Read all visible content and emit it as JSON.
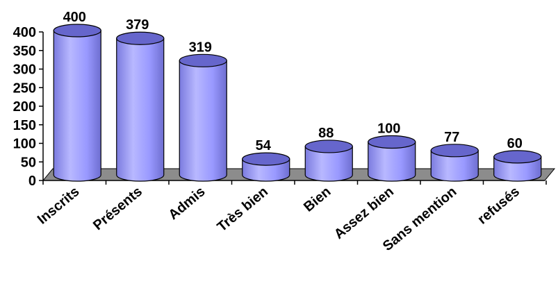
{
  "chart_data": {
    "type": "bar",
    "style": "3d-cylinder",
    "categories": [
      "Inscrits",
      "Présents",
      "Admis",
      "Très bien",
      "Bien",
      "Assez bien",
      "Sans mention",
      "refusés"
    ],
    "values": [
      400,
      379,
      319,
      54,
      88,
      100,
      77,
      60
    ],
    "data_labels": [
      "400",
      "379",
      "319",
      "54",
      "88",
      "100",
      "77",
      "60"
    ],
    "y_ticks": [
      "0",
      "50",
      "100",
      "150",
      "200",
      "250",
      "300",
      "350",
      "400"
    ],
    "ylim": [
      0,
      400
    ],
    "title": "",
    "xlabel": "",
    "ylabel": "",
    "grid": false,
    "legend": "none",
    "colors": {
      "bar_body": "#9999ff",
      "bar_top": "#6666cc",
      "floor": "#808080",
      "outline": "#000000"
    }
  }
}
